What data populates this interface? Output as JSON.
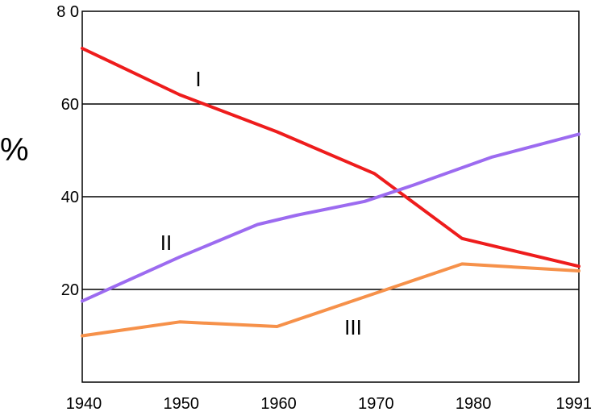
{
  "chart_data": {
    "type": "line",
    "ylabel": "%",
    "xlim": [
      1940,
      1991
    ],
    "ylim": [
      0,
      80
    ],
    "grid": "horizontal at 20, 40, 60",
    "x_ticks": [
      "1940",
      "1950",
      "1960",
      "1970",
      "1980",
      "1991"
    ],
    "y_ticks": [
      "20",
      "40",
      "60",
      "8 0"
    ],
    "series": [
      {
        "name": "I",
        "color": "#ee1c1c",
        "x": [
          1940,
          1950,
          1960,
          1970,
          1979,
          1991
        ],
        "y": [
          72,
          62,
          54,
          45,
          31,
          25
        ]
      },
      {
        "name": "II",
        "color": "#9c6bf0",
        "x": [
          1940,
          1950,
          1958,
          1962,
          1969,
          1974,
          1982,
          1991
        ],
        "y": [
          17.5,
          27,
          34,
          36,
          39,
          42.5,
          48.5,
          53.5
        ]
      },
      {
        "name": "III",
        "color": "#f6914a",
        "x": [
          1940,
          1950,
          1960,
          1979,
          1991
        ],
        "y": [
          10,
          13,
          12,
          25.5,
          24
        ]
      }
    ]
  }
}
